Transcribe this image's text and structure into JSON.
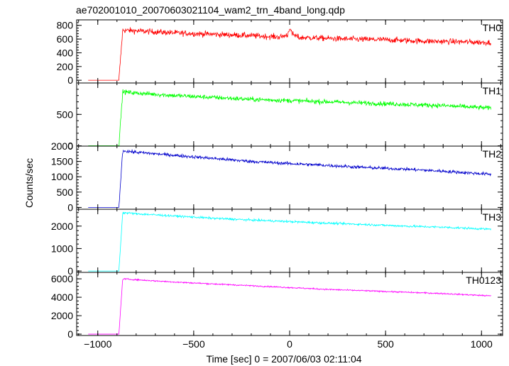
{
  "chart_data": {
    "type": "line",
    "title": "ae702001010_20070603021104_wam2_trn_4band_long.qdp",
    "xlabel": "Time [sec] 0 = 2007/06/03 02:11:04",
    "ylabel": "Counts/sec",
    "xlim": [
      -1110,
      1110
    ],
    "x_ticks": [
      -1000,
      -500,
      0,
      500,
      1000
    ],
    "x_tick_labels": [
      "−1000",
      "−500",
      "0",
      "500",
      "1000"
    ],
    "onset_time": -890,
    "panels": [
      {
        "name": "TH0",
        "color": "#ff0000",
        "ylim": [
          -40,
          880
        ],
        "y_ticks": [
          0,
          200,
          400,
          600,
          800
        ],
        "y_tick_labels": [
          "0",
          "200",
          "400",
          "600",
          "800"
        ],
        "x": [
          -1050,
          -890,
          -870,
          -800,
          -600,
          -400,
          -200,
          -50,
          -10,
          0,
          10,
          50,
          100,
          300,
          500,
          700,
          900,
          1050
        ],
        "y": [
          0,
          0,
          730,
          720,
          690,
          670,
          650,
          630,
          660,
          780,
          680,
          620,
          620,
          600,
          590,
          570,
          560,
          550
        ],
        "noise": 40,
        "pre_level": 0
      },
      {
        "name": "TH1",
        "color": "#00ff00",
        "ylim": [
          -5,
          1000
        ],
        "y_ticks": [
          0,
          500
        ],
        "y_tick_labels": [
          "0",
          "500"
        ],
        "x": [
          -1050,
          -890,
          -870,
          -800,
          -600,
          -400,
          -200,
          0,
          200,
          400,
          600,
          800,
          1050
        ],
        "y": [
          0,
          0,
          860,
          840,
          800,
          770,
          740,
          720,
          700,
          680,
          660,
          640,
          600
        ],
        "noise": 35,
        "pre_level": 0
      },
      {
        "name": "TH2",
        "color": "#0000cc",
        "ylim": [
          -60,
          2000
        ],
        "y_ticks": [
          0,
          500,
          1000,
          1500,
          2000
        ],
        "y_tick_labels": [
          "0",
          "500",
          "1000",
          "1500",
          "2000"
        ],
        "x": [
          -1050,
          -890,
          -870,
          -800,
          -600,
          -400,
          -200,
          0,
          200,
          400,
          600,
          800,
          1050
        ],
        "y": [
          0,
          0,
          1850,
          1800,
          1700,
          1600,
          1500,
          1430,
          1370,
          1300,
          1250,
          1180,
          1080
        ],
        "noise": 50,
        "pre_level": 0
      },
      {
        "name": "TH3",
        "color": "#00ffff",
        "ylim": [
          -60,
          2750
        ],
        "y_ticks": [
          0,
          1000,
          2000
        ],
        "y_tick_labels": [
          "0",
          "1000",
          "2000"
        ],
        "x": [
          -1050,
          -890,
          -870,
          -800,
          -600,
          -400,
          -200,
          0,
          200,
          400,
          600,
          800,
          1050
        ],
        "y": [
          0,
          0,
          2600,
          2550,
          2450,
          2350,
          2270,
          2200,
          2130,
          2070,
          2000,
          1950,
          1860
        ],
        "noise": 45,
        "pre_level": 0
      },
      {
        "name": "TH0123",
        "color": "#ff00ff",
        "ylim": [
          -150,
          6700
        ],
        "y_ticks": [
          0,
          2000,
          4000,
          6000
        ],
        "y_tick_labels": [
          "0",
          "2000",
          "4000",
          "6000"
        ],
        "x": [
          -1050,
          -890,
          -870,
          -800,
          -600,
          -400,
          -200,
          0,
          200,
          400,
          600,
          800,
          1050
        ],
        "y": [
          0,
          0,
          6000,
          5900,
          5650,
          5450,
          5250,
          5050,
          4850,
          4700,
          4550,
          4400,
          4150
        ],
        "noise": 70,
        "pre_level": 0
      }
    ]
  }
}
